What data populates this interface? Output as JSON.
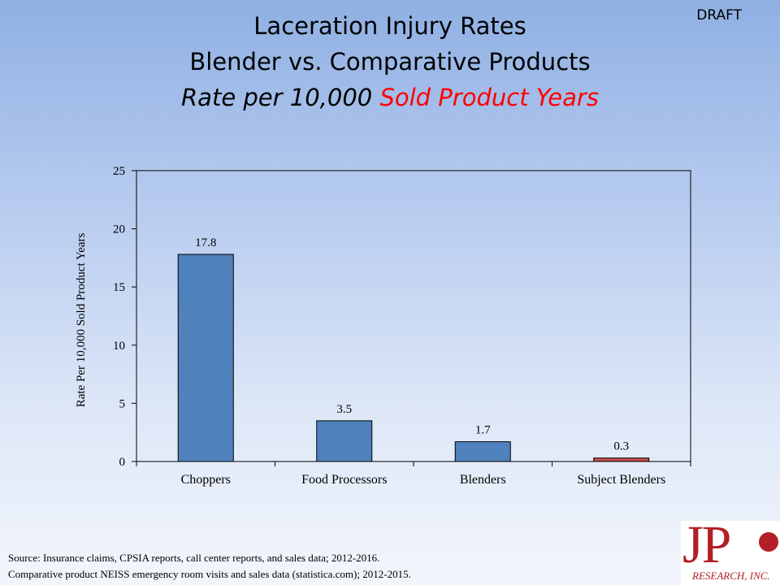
{
  "header": {
    "draft_label": "DRAFT",
    "title_line1": "Laceration Injury Rates",
    "title_line2": "Blender vs. Comparative Products",
    "title_line3_prefix": "Rate per 10,000 ",
    "title_line3_highlight": "Sold Product Years"
  },
  "colors": {
    "bar_default": "#4f81bd",
    "bar_highlight": "#c0504d",
    "title_highlight": "#ff0000"
  },
  "chart_data": {
    "type": "bar",
    "categories": [
      "Choppers",
      "Food Processors",
      "Blenders",
      "Subject Blenders"
    ],
    "values": [
      17.8,
      3.5,
      1.7,
      0.3
    ],
    "data_labels": [
      "17.8",
      "3.5",
      "1.7",
      "0.3"
    ],
    "highlight_index": 3,
    "ylabel": "Rate Per 10,000 Sold Product Years",
    "ylim": [
      0,
      25
    ],
    "yticks": [
      0,
      5,
      10,
      15,
      20,
      25
    ],
    "grid": false,
    "legend": "none"
  },
  "footer": {
    "source_line1": "Source: Insurance claims, CPSIA reports, call center reports, and sales data; 2012-2016.",
    "source_line2": "Comparative product NEISS emergency room visits and sales data (statistica.com); 2012-2015."
  },
  "logo": {
    "main_text": "JP",
    "sub_text": "RESEARCH, INC."
  }
}
